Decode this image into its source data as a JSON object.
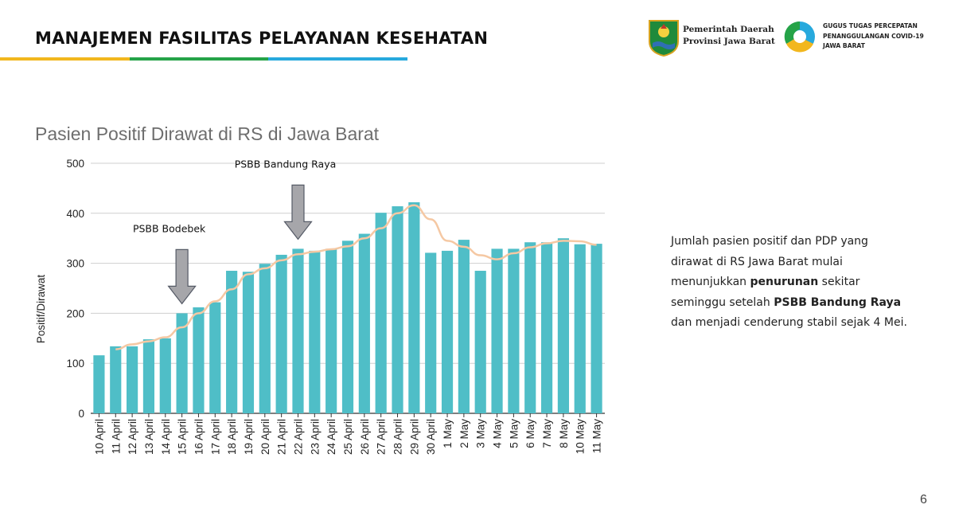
{
  "header": {
    "title": "MANAJEMEN FASILITAS PELAYANAN KESEHATAN",
    "accent_colors": [
      "#f2b71e",
      "#25a348",
      "#27a9dd"
    ]
  },
  "logos": {
    "left": {
      "line1": "Pemerintah Daerah",
      "line2": "Provinsi Jawa Barat"
    },
    "right": {
      "line1": "GUGUS TUGAS PERCEPATAN",
      "line2": "PENANGGULANGAN COVID-19",
      "line3": "JAWA BARAT"
    }
  },
  "chart_data": {
    "type": "bar",
    "title": "Pasien Positif Dirawat di RS di Jawa Barat",
    "ylabel": "Positif/Dirawat",
    "xlabel": "",
    "ylim": [
      0,
      500
    ],
    "yticks": [
      0,
      100,
      200,
      300,
      400,
      500
    ],
    "grid": true,
    "bar_color": "#4fbec7",
    "trend_color": "#f5c8a3",
    "categories": [
      "10 April",
      "11 April",
      "12 April",
      "13 April",
      "14 April",
      "15 April",
      "16 April",
      "17 April",
      "18 April",
      "19 April",
      "20 April",
      "21 April",
      "22 April",
      "23 April",
      "24 April",
      "25 April",
      "26 April",
      "27 April",
      "28 April",
      "29 April",
      "30 April",
      "1 May",
      "2 May",
      "3 May",
      "4 May",
      "5 May",
      "6 May",
      "7 May",
      "8 May",
      "10 May",
      "11 May"
    ],
    "values": [
      116,
      134,
      134,
      148,
      150,
      200,
      212,
      222,
      285,
      283,
      299,
      317,
      329,
      325,
      329,
      345,
      359,
      401,
      414,
      422,
      321,
      325,
      347,
      285,
      329,
      329,
      342,
      342,
      350,
      338,
      339
    ],
    "trend": [
      null,
      128,
      138,
      144,
      152,
      172,
      200,
      224,
      248,
      278,
      290,
      306,
      318,
      323,
      328,
      334,
      350,
      370,
      400,
      416,
      388,
      345,
      333,
      316,
      308,
      320,
      332,
      340,
      345,
      344,
      337
    ],
    "annotations": [
      {
        "label": "PSBB Bodebek",
        "category": "15 April"
      },
      {
        "label": "PSBB Bandung Raya",
        "category": "22 April"
      }
    ]
  },
  "side_text": {
    "p1": "Jumlah pasien positif dan PDP yang dirawat di RS Jawa Barat mulai menunjukkan ",
    "b1": "penurunan",
    "p2": " sekitar seminggu setelah ",
    "b2": "PSBB Bandung Raya",
    "p3": " dan menjadi cenderung stabil sejak 4 Mei."
  },
  "page_number": "6"
}
